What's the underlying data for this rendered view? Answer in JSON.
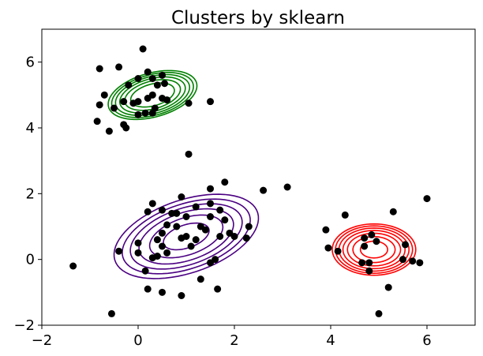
{
  "chart_data": {
    "type": "scatter",
    "title": "Clusters by sklearn",
    "xlabel": "",
    "ylabel": "",
    "xlim": [
      -2,
      7
    ],
    "ylim": [
      -2,
      7
    ],
    "xticks": [
      -2,
      0,
      2,
      4,
      6
    ],
    "yticks": [
      -2,
      0,
      2,
      4,
      6
    ],
    "grid": false,
    "point_color": "#000000",
    "points": [
      [
        -0.8,
        5.8
      ],
      [
        -0.4,
        5.85
      ],
      [
        0.1,
        6.4
      ],
      [
        0.2,
        5.7
      ],
      [
        0.3,
        5.5
      ],
      [
        0.5,
        5.6
      ],
      [
        0.0,
        5.5
      ],
      [
        -0.2,
        5.3
      ],
      [
        0.4,
        5.3
      ],
      [
        0.55,
        5.35
      ],
      [
        -0.7,
        5.0
      ],
      [
        -0.8,
        4.7
      ],
      [
        -0.5,
        4.6
      ],
      [
        -0.3,
        4.8
      ],
      [
        0.0,
        4.8
      ],
      [
        0.2,
        4.9
      ],
      [
        0.3,
        5.0
      ],
      [
        0.5,
        4.9
      ],
      [
        0.6,
        4.85
      ],
      [
        0.35,
        4.6
      ],
      [
        0.15,
        4.45
      ],
      [
        0.3,
        4.45
      ],
      [
        0.0,
        4.4
      ],
      [
        -0.1,
        4.75
      ],
      [
        -0.6,
        3.9
      ],
      [
        -0.85,
        4.2
      ],
      [
        -0.3,
        4.1
      ],
      [
        -0.25,
        4.0
      ],
      [
        1.05,
        4.75
      ],
      [
        1.5,
        4.8
      ],
      [
        1.05,
        3.2
      ],
      [
        3.1,
        2.2
      ],
      [
        2.6,
        2.1
      ],
      [
        1.8,
        2.35
      ],
      [
        1.5,
        2.15
      ],
      [
        0.9,
        1.9
      ],
      [
        0.3,
        1.7
      ],
      [
        0.5,
        1.5
      ],
      [
        0.2,
        1.45
      ],
      [
        0.7,
        1.4
      ],
      [
        0.8,
        1.4
      ],
      [
        1.2,
        1.6
      ],
      [
        1.5,
        1.7
      ],
      [
        1.7,
        1.5
      ],
      [
        1.5,
        1.3
      ],
      [
        1.8,
        1.2
      ],
      [
        1.0,
        1.3
      ],
      [
        0.6,
        1.05
      ],
      [
        0.8,
        1.0
      ],
      [
        1.3,
        1.0
      ],
      [
        1.4,
        0.9
      ],
      [
        1.9,
        0.8
      ],
      [
        2.0,
        0.7
      ],
      [
        2.25,
        0.65
      ],
      [
        2.3,
        1.0
      ],
      [
        1.7,
        0.7
      ],
      [
        1.2,
        0.6
      ],
      [
        0.9,
        0.65
      ],
      [
        1.0,
        0.7
      ],
      [
        0.5,
        0.8
      ],
      [
        0.4,
        0.6
      ],
      [
        0.5,
        0.4
      ],
      [
        1.1,
        0.4
      ],
      [
        0.4,
        0.1
      ],
      [
        0.6,
        0.2
      ],
      [
        0.0,
        0.5
      ],
      [
        0.0,
        0.2
      ],
      [
        -0.4,
        0.25
      ],
      [
        1.5,
        -0.1
      ],
      [
        1.6,
        0.0
      ],
      [
        1.3,
        -0.6
      ],
      [
        0.15,
        -0.35
      ],
      [
        0.3,
        0.05
      ],
      [
        0.2,
        -0.9
      ],
      [
        0.5,
        -1.0
      ],
      [
        0.9,
        -1.1
      ],
      [
        1.65,
        -0.9
      ],
      [
        -1.35,
        -0.2
      ],
      [
        -0.55,
        -1.65
      ],
      [
        3.9,
        0.9
      ],
      [
        3.95,
        0.35
      ],
      [
        4.3,
        1.35
      ],
      [
        4.15,
        0.25
      ],
      [
        4.7,
        0.65
      ],
      [
        4.85,
        0.75
      ],
      [
        4.95,
        0.55
      ],
      [
        4.7,
        0.4
      ],
      [
        4.65,
        -0.1
      ],
      [
        4.8,
        -0.1
      ],
      [
        4.8,
        -0.35
      ],
      [
        5.3,
        1.45
      ],
      [
        5.55,
        0.45
      ],
      [
        5.5,
        0.0
      ],
      [
        5.7,
        -0.05
      ],
      [
        5.85,
        -0.1
      ],
      [
        5.2,
        -0.85
      ],
      [
        5.0,
        -1.65
      ],
      [
        6.0,
        1.85
      ]
    ],
    "clusters": [
      {
        "color": "#008000",
        "center": [
          0.3,
          5.0
        ],
        "sigma_major": 0.55,
        "sigma_minor": 0.35,
        "angle_deg": 30,
        "levels": [
          0.8,
          1.3,
          1.8,
          2.3,
          2.8,
          3.3
        ]
      },
      {
        "color": "#4b0082",
        "center": [
          1.0,
          0.7
        ],
        "sigma_major": 0.9,
        "sigma_minor": 0.55,
        "angle_deg": 35,
        "levels": [
          0.35,
          0.9,
          1.5,
          2.1,
          2.75,
          3.5
        ]
      },
      {
        "color": "#ff0000",
        "center": [
          4.9,
          0.3
        ],
        "sigma_major": 0.4,
        "sigma_minor": 0.36,
        "angle_deg": 0,
        "levels": [
          0.5,
          1.2,
          1.9,
          2.6,
          3.3,
          4.0,
          4.7
        ]
      }
    ]
  }
}
